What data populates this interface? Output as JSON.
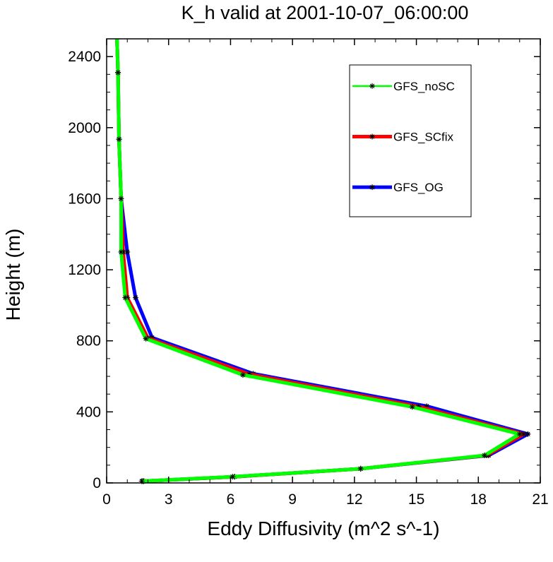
{
  "chart_data": {
    "type": "line",
    "title": "K_h valid at 2001-10-07_06:00:00",
    "xlabel": "Eddy Diffusivity (m^2 s^-1)",
    "ylabel": "Height (m)",
    "xlim": [
      0,
      21
    ],
    "ylim": [
      0,
      2500
    ],
    "x_ticks": [
      "0",
      "3",
      "6",
      "9",
      "12",
      "15",
      "18",
      "21"
    ],
    "y_ticks": [
      "0",
      "400",
      "800",
      "1200",
      "1600",
      "2000",
      "2400"
    ],
    "grid": false,
    "legend_position": "top-right",
    "series": [
      {
        "name": "GFS_OG",
        "color": "#0000ff",
        "points": [
          [
            1.8,
            10
          ],
          [
            6.2,
            35
          ],
          [
            12.3,
            80
          ],
          [
            18.5,
            155
          ],
          [
            20.4,
            275
          ],
          [
            15.5,
            432
          ],
          [
            7.1,
            615
          ],
          [
            2.2,
            818
          ],
          [
            1.4,
            1043
          ],
          [
            1.0,
            1300
          ],
          [
            0.7,
            1600
          ],
          [
            0.6,
            1935
          ],
          [
            0.55,
            2310
          ],
          [
            0.5,
            2500
          ]
        ]
      },
      {
        "name": "GFS_SCfix",
        "color": "#ff0000",
        "points": [
          [
            1.75,
            10
          ],
          [
            6.2,
            35
          ],
          [
            12.3,
            80
          ],
          [
            18.4,
            155
          ],
          [
            20.2,
            275
          ],
          [
            15.1,
            430
          ],
          [
            6.9,
            612
          ],
          [
            2.0,
            815
          ],
          [
            1.0,
            1043
          ],
          [
            0.8,
            1300
          ],
          [
            0.7,
            1600
          ],
          [
            0.6,
            1935
          ],
          [
            0.55,
            2310
          ],
          [
            0.5,
            2500
          ]
        ]
      },
      {
        "name": "GFS_noSC",
        "color": "#00ff00",
        "points": [
          [
            1.7,
            10
          ],
          [
            6.1,
            35
          ],
          [
            12.3,
            80
          ],
          [
            18.3,
            155
          ],
          [
            20.0,
            275
          ],
          [
            14.8,
            428
          ],
          [
            6.6,
            608
          ],
          [
            1.9,
            812
          ],
          [
            0.9,
            1043
          ],
          [
            0.7,
            1300
          ],
          [
            0.7,
            1600
          ],
          [
            0.6,
            1935
          ],
          [
            0.55,
            2310
          ],
          [
            0.5,
            2500
          ]
        ]
      }
    ],
    "legend": [
      {
        "name": "GFS_noSC",
        "color": "#00ff00"
      },
      {
        "name": "GFS_SCfix",
        "color": "#ff0000"
      },
      {
        "name": "GFS_OG",
        "color": "#0000ff"
      }
    ]
  }
}
